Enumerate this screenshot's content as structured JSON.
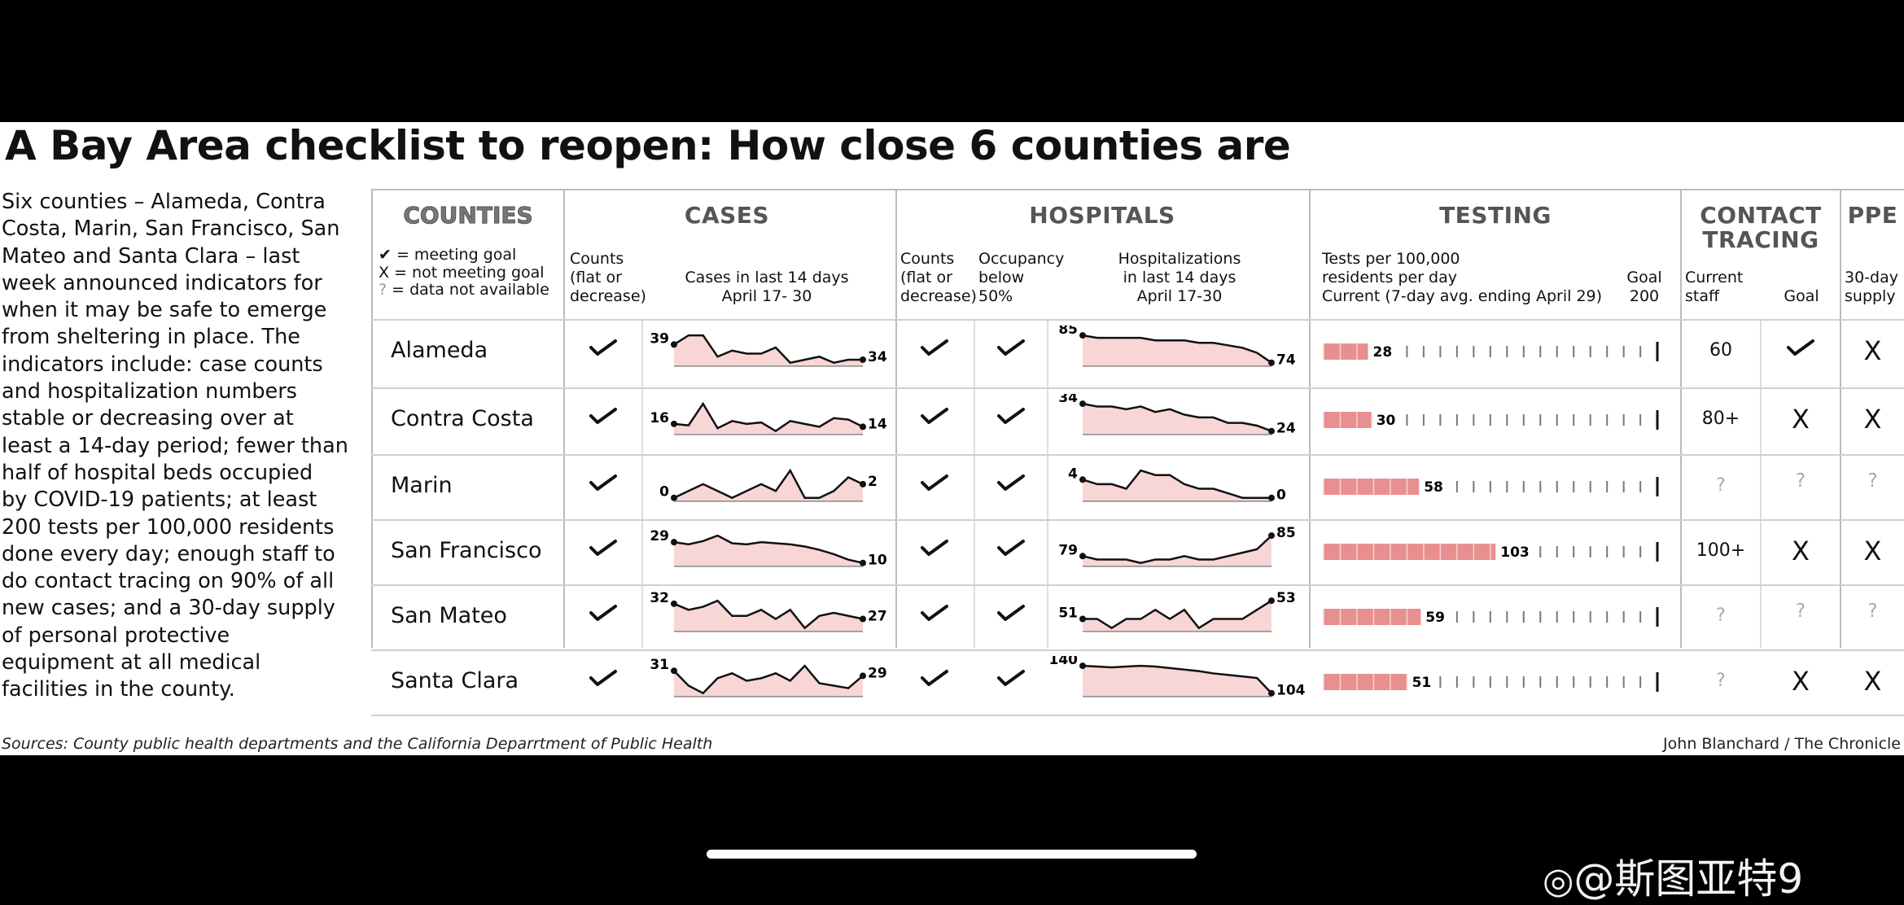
{
  "title": "A Bay Area checklist to reopen: How close 6 counties are",
  "intro_lines": [
    "Six counties – Alameda, Contra",
    "Costa, Marin, San Francisco, San",
    "Mateo and Santa Clara – last",
    "week announced indicators for",
    "when it may be safe to emerge",
    "from sheltering in place. The",
    "indicators include: case counts",
    "and hospitalization numbers",
    "stable or decreasing over at",
    "least a 14-day period; fewer than",
    "half of hospital beds occupied",
    "by COVID-19 patients; at least",
    "200 tests per 100,000 residents",
    "done every day; enough staff to",
    "do contact tracing on 90% of all",
    "new cases; and a 30-day supply",
    "of personal protective",
    "equipment at all medical",
    "facilities in the county."
  ],
  "headers": {
    "counties": "COUNTIES",
    "cases": "CASES",
    "hospitals": "HOSPITALS",
    "testing": "TESTING",
    "contact_tracing_1": "CONTACT",
    "contact_tracing_2": "TRACING",
    "ppe": "PPE"
  },
  "legend": {
    "meeting": "= meeting goal",
    "not_meeting": "= not meeting goal",
    "na": "= data not available"
  },
  "subheaders": {
    "cases_counts": [
      "Counts",
      "(flat or",
      "decrease)"
    ],
    "cases_14": [
      "Cases in last 14 days",
      "April 17- 30"
    ],
    "hosp_counts": [
      "Counts",
      "(flat or",
      "decrease)"
    ],
    "hosp_occupancy": [
      "Occupancy",
      "below",
      "50%"
    ],
    "hosp_14": [
      "Hospitalizations",
      "in last 14 days",
      "April 17-30"
    ],
    "testing": [
      "Tests per 100,000",
      "residents per day",
      "Current (7-day avg. ending April 29)"
    ],
    "goal": [
      "Goal",
      "200"
    ],
    "staff": [
      "Current",
      "staff"
    ],
    "ct_goal": "Goal",
    "ppe": [
      "30-day",
      "supply"
    ]
  },
  "chart_data": {
    "type": "table",
    "testing_goal": 200,
    "rows": [
      {
        "county": "Alameda",
        "cases_flat": "check",
        "cases_14d": [
          39,
          42,
          42,
          35,
          37,
          36,
          36,
          38,
          33,
          34,
          35,
          33,
          34,
          34
        ],
        "cases_start": 39,
        "cases_end": 34,
        "hosp_flat": "check",
        "occupancy_below_50": "check",
        "hosp_14d": [
          85,
          84,
          84,
          84,
          84,
          83,
          83,
          83,
          82,
          82,
          81,
          80,
          78,
          74
        ],
        "hosp_start": 85,
        "hosp_end": 74,
        "tests": 28,
        "contact_staff": "60",
        "contact_goal": "check",
        "ppe": "x"
      },
      {
        "county": "Contra Costa",
        "cases_flat": "check",
        "cases_14d": [
          16,
          15,
          30,
          13,
          18,
          16,
          17,
          11,
          18,
          16,
          14,
          20,
          19,
          14
        ],
        "cases_start": 16,
        "cases_end": 14,
        "hosp_flat": "check",
        "occupancy_below_50": "check",
        "hosp_14d": [
          34,
          33,
          33,
          32,
          33,
          31,
          32,
          30,
          29,
          29,
          27,
          27,
          26,
          24
        ],
        "hosp_start": 34,
        "hosp_end": 24,
        "tests": 30,
        "contact_staff": "80+",
        "contact_goal": "x",
        "ppe": "x"
      },
      {
        "county": "Marin",
        "cases_flat": "check",
        "cases_14d": [
          0,
          1,
          2,
          1,
          0,
          1,
          2,
          1,
          4,
          0,
          0,
          1,
          3,
          2
        ],
        "cases_start": 0,
        "cases_end": 2,
        "hosp_flat": "check",
        "occupancy_below_50": "check",
        "hosp_14d": [
          4,
          3,
          3,
          2,
          6,
          5,
          5,
          3,
          2,
          2,
          1,
          0,
          0,
          0
        ],
        "hosp_start": 4,
        "hosp_end": 0,
        "tests": 58,
        "contact_staff": "?",
        "contact_goal": "?",
        "ppe": "?"
      },
      {
        "county": "San Francisco",
        "cases_flat": "check",
        "cases_14d": [
          29,
          27,
          30,
          35,
          28,
          27,
          29,
          28,
          27,
          25,
          22,
          18,
          13,
          10
        ],
        "cases_start": 29,
        "cases_end": 10,
        "hosp_flat": "check",
        "occupancy_below_50": "check",
        "hosp_14d": [
          79,
          78,
          78,
          78,
          77,
          78,
          78,
          79,
          78,
          78,
          79,
          80,
          81,
          85
        ],
        "hosp_start": 79,
        "hosp_end": 85,
        "tests": 103,
        "contact_staff": "100+",
        "contact_goal": "x",
        "ppe": "x"
      },
      {
        "county": "San Mateo",
        "cases_flat": "check",
        "cases_14d": [
          32,
          30,
          31,
          33,
          28,
          28,
          30,
          27,
          30,
          24,
          28,
          29,
          28,
          27
        ],
        "cases_start": 32,
        "cases_end": 27,
        "hosp_flat": "check",
        "occupancy_below_50": "check",
        "hosp_14d": [
          51,
          51,
          50,
          51,
          51,
          52,
          51,
          52,
          50,
          51,
          51,
          51,
          52,
          53
        ],
        "hosp_start": 51,
        "hosp_end": 53,
        "tests": 59,
        "contact_staff": "?",
        "contact_goal": "?",
        "ppe": "?"
      },
      {
        "county": "Santa Clara",
        "cases_flat": "check",
        "cases_14d": [
          31,
          25,
          22,
          28,
          30,
          27,
          28,
          30,
          27,
          33,
          26,
          25,
          24,
          29
        ],
        "cases_start": 31,
        "cases_end": 29,
        "hosp_flat": "check",
        "occupancy_below_50": "check",
        "hosp_14d": [
          140,
          139,
          138,
          139,
          140,
          139,
          137,
          135,
          133,
          130,
          128,
          126,
          124,
          104
        ],
        "hosp_start": 140,
        "hosp_end": 104,
        "tests": 51,
        "contact_staff": "?",
        "contact_goal": "x",
        "ppe": "x"
      }
    ]
  },
  "footer": {
    "sources": "Sources: County public health departments and the California Deparrtment of Public Health",
    "credit": "John Blanchard / The Chronicle"
  },
  "watermark": "@斯图亚特9",
  "colors": {
    "bar_fill": "#e88f8f",
    "bar_light": "#f6d2d2",
    "spark_fill": "#f8d6d6",
    "line": "#111111"
  }
}
